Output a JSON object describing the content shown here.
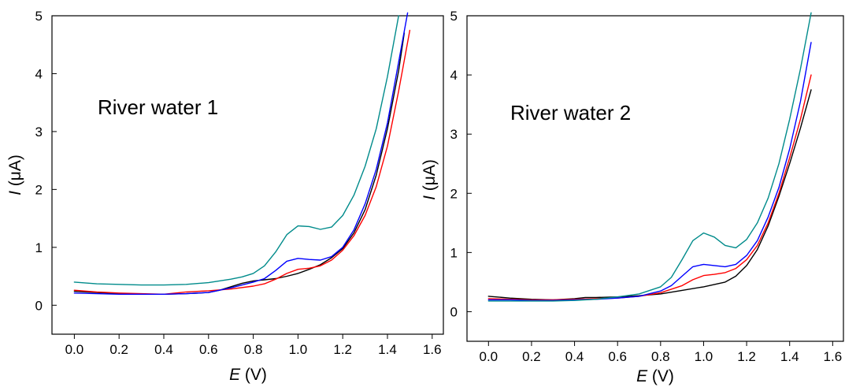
{
  "chart_data": [
    {
      "type": "line",
      "title": "River water 1",
      "xlabel_italic": "E",
      "xlabel_rest": " (V)",
      "ylabel_italic": "I",
      "ylabel_rest": " (μA)",
      "xlim": [
        -0.1,
        1.65
      ],
      "ylim": [
        -0.5,
        5
      ],
      "xticks": [
        "0.0",
        "0.2",
        "0.4",
        "0.6",
        "0.8",
        "1.0",
        "1.2",
        "1.4",
        "1.6"
      ],
      "yticks": [
        "0",
        "1",
        "2",
        "3",
        "4",
        "5"
      ],
      "series": [
        {
          "color": "#000000",
          "points": [
            [
              0.0,
              0.24
            ],
            [
              0.1,
              0.22
            ],
            [
              0.2,
              0.2
            ],
            [
              0.3,
              0.19
            ],
            [
              0.4,
              0.19
            ],
            [
              0.5,
              0.2
            ],
            [
              0.6,
              0.22
            ],
            [
              0.65,
              0.26
            ],
            [
              0.7,
              0.32
            ],
            [
              0.75,
              0.38
            ],
            [
              0.8,
              0.42
            ],
            [
              0.85,
              0.44
            ],
            [
              0.9,
              0.46
            ],
            [
              0.95,
              0.5
            ],
            [
              1.0,
              0.55
            ],
            [
              1.05,
              0.62
            ],
            [
              1.1,
              0.7
            ],
            [
              1.15,
              0.82
            ],
            [
              1.2,
              0.98
            ],
            [
              1.25,
              1.25
            ],
            [
              1.3,
              1.65
            ],
            [
              1.35,
              2.25
            ],
            [
              1.4,
              3.05
            ],
            [
              1.45,
              4.05
            ],
            [
              1.475,
              4.7
            ]
          ]
        },
        {
          "color": "#ff0000",
          "points": [
            [
              0.0,
              0.26
            ],
            [
              0.1,
              0.23
            ],
            [
              0.2,
              0.21
            ],
            [
              0.3,
              0.2
            ],
            [
              0.4,
              0.19
            ],
            [
              0.5,
              0.23
            ],
            [
              0.6,
              0.25
            ],
            [
              0.7,
              0.28
            ],
            [
              0.8,
              0.33
            ],
            [
              0.85,
              0.37
            ],
            [
              0.9,
              0.45
            ],
            [
              0.95,
              0.55
            ],
            [
              1.0,
              0.62
            ],
            [
              1.05,
              0.64
            ],
            [
              1.1,
              0.68
            ],
            [
              1.15,
              0.78
            ],
            [
              1.2,
              0.95
            ],
            [
              1.25,
              1.2
            ],
            [
              1.3,
              1.55
            ],
            [
              1.35,
              2.05
            ],
            [
              1.4,
              2.75
            ],
            [
              1.45,
              3.7
            ],
            [
              1.5,
              4.75
            ]
          ]
        },
        {
          "color": "#0000ff",
          "points": [
            [
              0.0,
              0.21
            ],
            [
              0.1,
              0.2
            ],
            [
              0.2,
              0.19
            ],
            [
              0.3,
              0.19
            ],
            [
              0.4,
              0.19
            ],
            [
              0.5,
              0.2
            ],
            [
              0.6,
              0.22
            ],
            [
              0.7,
              0.3
            ],
            [
              0.8,
              0.4
            ],
            [
              0.85,
              0.46
            ],
            [
              0.9,
              0.6
            ],
            [
              0.95,
              0.76
            ],
            [
              1.0,
              0.81
            ],
            [
              1.05,
              0.79
            ],
            [
              1.1,
              0.78
            ],
            [
              1.15,
              0.84
            ],
            [
              1.2,
              1.0
            ],
            [
              1.25,
              1.3
            ],
            [
              1.3,
              1.75
            ],
            [
              1.35,
              2.35
            ],
            [
              1.4,
              3.15
            ],
            [
              1.45,
              4.2
            ],
            [
              1.49,
              5.05
            ]
          ]
        },
        {
          "color": "#008b8b",
          "points": [
            [
              0.0,
              0.4
            ],
            [
              0.1,
              0.37
            ],
            [
              0.2,
              0.36
            ],
            [
              0.3,
              0.35
            ],
            [
              0.4,
              0.35
            ],
            [
              0.5,
              0.36
            ],
            [
              0.6,
              0.39
            ],
            [
              0.7,
              0.45
            ],
            [
              0.75,
              0.49
            ],
            [
              0.8,
              0.55
            ],
            [
              0.85,
              0.68
            ],
            [
              0.9,
              0.92
            ],
            [
              0.95,
              1.22
            ],
            [
              1.0,
              1.37
            ],
            [
              1.05,
              1.36
            ],
            [
              1.1,
              1.31
            ],
            [
              1.15,
              1.35
            ],
            [
              1.2,
              1.55
            ],
            [
              1.25,
              1.9
            ],
            [
              1.3,
              2.4
            ],
            [
              1.35,
              3.05
            ],
            [
              1.4,
              3.95
            ],
            [
              1.45,
              5.0
            ]
          ]
        }
      ]
    },
    {
      "type": "line",
      "title": "River water 2",
      "xlabel_italic": "E",
      "xlabel_rest": " (V)",
      "ylabel_italic": "I",
      "ylabel_rest": " (μA)",
      "xlim": [
        -0.1,
        1.65
      ],
      "ylim": [
        -0.5,
        5
      ],
      "xticks": [
        "0.0",
        "0.2",
        "0.4",
        "0.6",
        "0.8",
        "1.0",
        "1.2",
        "1.4",
        "1.6"
      ],
      "yticks": [
        "0",
        "1",
        "2",
        "3",
        "4",
        "5"
      ],
      "series": [
        {
          "color": "#000000",
          "points": [
            [
              0.0,
              0.26
            ],
            [
              0.1,
              0.23
            ],
            [
              0.2,
              0.21
            ],
            [
              0.3,
              0.2
            ],
            [
              0.4,
              0.22
            ],
            [
              0.45,
              0.24
            ],
            [
              0.5,
              0.24
            ],
            [
              0.6,
              0.25
            ],
            [
              0.7,
              0.27
            ],
            [
              0.8,
              0.3
            ],
            [
              0.9,
              0.36
            ],
            [
              1.0,
              0.42
            ],
            [
              1.1,
              0.5
            ],
            [
              1.15,
              0.6
            ],
            [
              1.2,
              0.78
            ],
            [
              1.25,
              1.05
            ],
            [
              1.3,
              1.45
            ],
            [
              1.35,
              1.95
            ],
            [
              1.4,
              2.5
            ],
            [
              1.45,
              3.1
            ],
            [
              1.5,
              3.75
            ]
          ]
        },
        {
          "color": "#ff0000",
          "points": [
            [
              0.0,
              0.22
            ],
            [
              0.1,
              0.21
            ],
            [
              0.2,
              0.2
            ],
            [
              0.3,
              0.2
            ],
            [
              0.4,
              0.21
            ],
            [
              0.5,
              0.22
            ],
            [
              0.6,
              0.23
            ],
            [
              0.7,
              0.26
            ],
            [
              0.8,
              0.32
            ],
            [
              0.9,
              0.44
            ],
            [
              0.95,
              0.54
            ],
            [
              1.0,
              0.61
            ],
            [
              1.05,
              0.63
            ],
            [
              1.1,
              0.66
            ],
            [
              1.15,
              0.73
            ],
            [
              1.2,
              0.88
            ],
            [
              1.25,
              1.12
            ],
            [
              1.3,
              1.5
            ],
            [
              1.35,
              2.0
            ],
            [
              1.4,
              2.6
            ],
            [
              1.45,
              3.25
            ],
            [
              1.5,
              4.0
            ]
          ]
        },
        {
          "color": "#0000ff",
          "points": [
            [
              0.0,
              0.2
            ],
            [
              0.1,
              0.2
            ],
            [
              0.2,
              0.19
            ],
            [
              0.3,
              0.19
            ],
            [
              0.4,
              0.2
            ],
            [
              0.5,
              0.21
            ],
            [
              0.6,
              0.23
            ],
            [
              0.7,
              0.26
            ],
            [
              0.8,
              0.35
            ],
            [
              0.85,
              0.44
            ],
            [
              0.9,
              0.6
            ],
            [
              0.95,
              0.76
            ],
            [
              1.0,
              0.8
            ],
            [
              1.05,
              0.78
            ],
            [
              1.1,
              0.76
            ],
            [
              1.15,
              0.8
            ],
            [
              1.2,
              0.95
            ],
            [
              1.25,
              1.2
            ],
            [
              1.3,
              1.6
            ],
            [
              1.35,
              2.1
            ],
            [
              1.4,
              2.75
            ],
            [
              1.45,
              3.55
            ],
            [
              1.5,
              4.55
            ]
          ]
        },
        {
          "color": "#008b8b",
          "points": [
            [
              0.0,
              0.18
            ],
            [
              0.1,
              0.18
            ],
            [
              0.2,
              0.18
            ],
            [
              0.3,
              0.18
            ],
            [
              0.4,
              0.19
            ],
            [
              0.5,
              0.21
            ],
            [
              0.6,
              0.25
            ],
            [
              0.7,
              0.3
            ],
            [
              0.8,
              0.42
            ],
            [
              0.85,
              0.58
            ],
            [
              0.9,
              0.88
            ],
            [
              0.95,
              1.2
            ],
            [
              1.0,
              1.33
            ],
            [
              1.05,
              1.26
            ],
            [
              1.1,
              1.12
            ],
            [
              1.15,
              1.08
            ],
            [
              1.2,
              1.22
            ],
            [
              1.25,
              1.5
            ],
            [
              1.3,
              1.92
            ],
            [
              1.35,
              2.5
            ],
            [
              1.4,
              3.25
            ],
            [
              1.45,
              4.1
            ],
            [
              1.5,
              5.05
            ]
          ]
        }
      ]
    }
  ]
}
